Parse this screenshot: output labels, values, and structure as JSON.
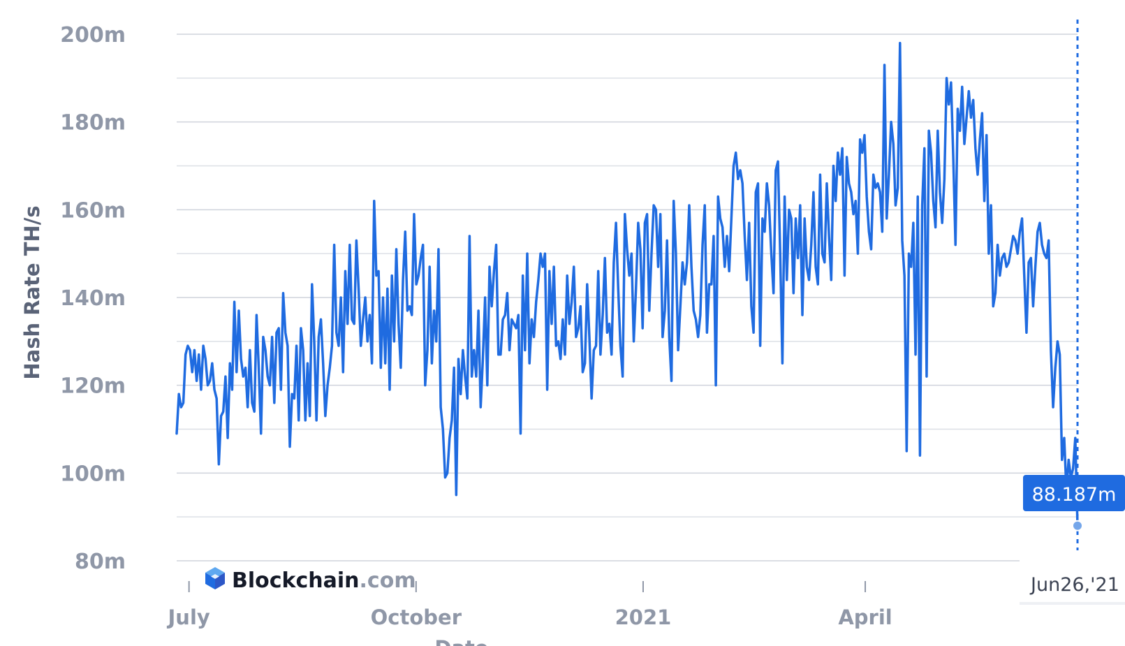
{
  "chart_data": {
    "type": "line",
    "ylabel": "Hash Rate TH/s",
    "xlabel": "Date",
    "ylim": [
      80,
      200
    ],
    "y_ticks": [
      "200m",
      "180m",
      "160m",
      "140m",
      "120m",
      "100m",
      "80m"
    ],
    "x_ticks": [
      "July",
      "October",
      "2021",
      "April"
    ],
    "x_start": "2020-06-26",
    "x_end": "2021-06-26",
    "grid": true,
    "tooltip_value": "88.187m",
    "tooltip_date": "Jun26,'21",
    "series": [
      {
        "color": "#1f6be0",
        "values": [
          109,
          118,
          115,
          116,
          127,
          129,
          128,
          123,
          128,
          121,
          127,
          119,
          129,
          126,
          120,
          121,
          125,
          119,
          117,
          102,
          113,
          114,
          122,
          108,
          125,
          119,
          139,
          123,
          137,
          126,
          122,
          124,
          115,
          128,
          116,
          114,
          136,
          124,
          109,
          131,
          128,
          122,
          120,
          131,
          116,
          132,
          133,
          119,
          141,
          132,
          129,
          106,
          118,
          117,
          129,
          112,
          133,
          128,
          112,
          125,
          113,
          143,
          130,
          112,
          131,
          135,
          125,
          113,
          120,
          124,
          129,
          152,
          132,
          129,
          140,
          123,
          146,
          134,
          152,
          135,
          134,
          153,
          142,
          129,
          135,
          140,
          130,
          136,
          125,
          162,
          145,
          146,
          124,
          140,
          125,
          142,
          119,
          145,
          130,
          151,
          134,
          124,
          144,
          155,
          137,
          138,
          136,
          159,
          143,
          145,
          149,
          152,
          120,
          128,
          147,
          125,
          137,
          130,
          151,
          115,
          110,
          99,
          100,
          108,
          112,
          124,
          95,
          126,
          118,
          128,
          122,
          117,
          154,
          122,
          128,
          122,
          137,
          115,
          126,
          140,
          120,
          147,
          138,
          146,
          152,
          127,
          127,
          135,
          136,
          141,
          128,
          135,
          134,
          133,
          136,
          109,
          145,
          128,
          150,
          125,
          135,
          131,
          139,
          144,
          150,
          147,
          150,
          119,
          146,
          134,
          147,
          129,
          130,
          126,
          135,
          127,
          145,
          134,
          139,
          147,
          131,
          133,
          138,
          123,
          125,
          143,
          131,
          117,
          128,
          129,
          146,
          127,
          136,
          149,
          132,
          134,
          127,
          148,
          157,
          142,
          129,
          122,
          159,
          151,
          145,
          150,
          130,
          142,
          157,
          151,
          133,
          157,
          159,
          137,
          150,
          161,
          160,
          147,
          159,
          131,
          137,
          153,
          131,
          121,
          162,
          150,
          128,
          138,
          148,
          143,
          148,
          161,
          147,
          137,
          135,
          131,
          136,
          152,
          161,
          132,
          143,
          143,
          154,
          120,
          163,
          158,
          156,
          147,
          154,
          146,
          158,
          170,
          173,
          167,
          169,
          166,
          154,
          144,
          157,
          138,
          132,
          164,
          166,
          129,
          158,
          155,
          166,
          161,
          150,
          141,
          169,
          171,
          150,
          125,
          163,
          144,
          160,
          158,
          141,
          158,
          149,
          161,
          136,
          158,
          147,
          144,
          152,
          164,
          147,
          143,
          168,
          150,
          148,
          166,
          154,
          144,
          170,
          162,
          173,
          168,
          174,
          145,
          172,
          166,
          164,
          159,
          162,
          150,
          176,
          173,
          177,
          163,
          155,
          151,
          168,
          165,
          166,
          164,
          155,
          193,
          158,
          168,
          180,
          175,
          161,
          165,
          198,
          153,
          145,
          105,
          150,
          147,
          157,
          127,
          163,
          104,
          161,
          174,
          122,
          178,
          173,
          162,
          156,
          178,
          164,
          157,
          167,
          190,
          184,
          189,
          172,
          152,
          183,
          178,
          188,
          175,
          181,
          187,
          181,
          185,
          174,
          168,
          176,
          182,
          162,
          177,
          150,
          161,
          138,
          141,
          152,
          145,
          149,
          150,
          147,
          148,
          151,
          154,
          153,
          150,
          155,
          158,
          145,
          132,
          148,
          149,
          138,
          147,
          155,
          157,
          152,
          150,
          149,
          153,
          128,
          115,
          124,
          130,
          127,
          103,
          108,
          96,
          103,
          99,
          101,
          108,
          88
        ]
      }
    ]
  },
  "brand": {
    "name": "Blockchain",
    "suffix": ".com"
  }
}
